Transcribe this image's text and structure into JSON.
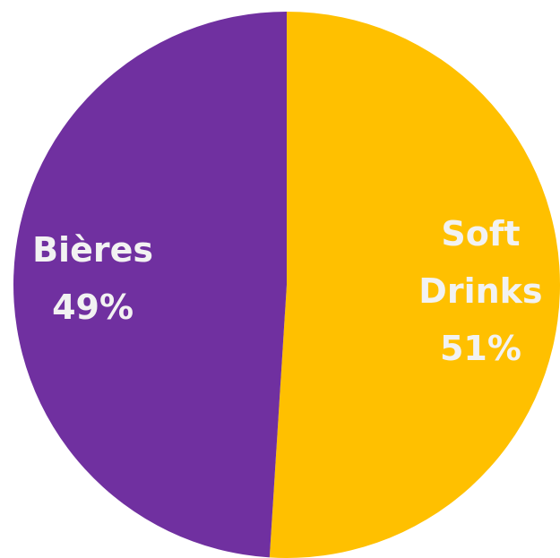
{
  "chart_data": {
    "type": "pie",
    "categories": [
      "Soft Drinks",
      "Bières"
    ],
    "values": [
      51,
      49
    ],
    "value_labels": [
      "51%",
      "49%"
    ],
    "colors": [
      "#FFC000",
      "#7030A0"
    ]
  }
}
